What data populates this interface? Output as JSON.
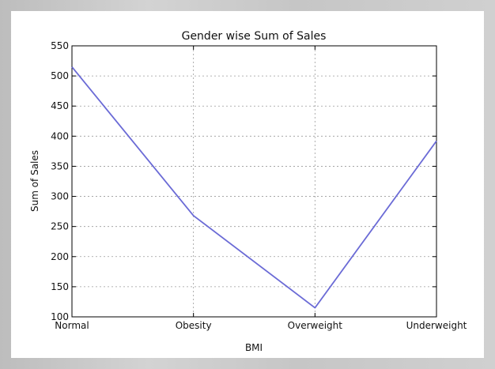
{
  "chart_data": {
    "type": "line",
    "title": "Gender wise Sum of Sales",
    "xlabel": "BMI",
    "ylabel": "Sum of Sales",
    "categories": [
      "Normal",
      "Obesity",
      "Overweight",
      "Underweight"
    ],
    "series": [
      {
        "values": [
          515,
          268,
          115,
          392
        ],
        "color": "#6b6bd6"
      }
    ],
    "ylim": [
      100,
      550
    ],
    "yticks": [
      100,
      150,
      200,
      250,
      300,
      350,
      400,
      450,
      500,
      550
    ],
    "grid": true
  }
}
